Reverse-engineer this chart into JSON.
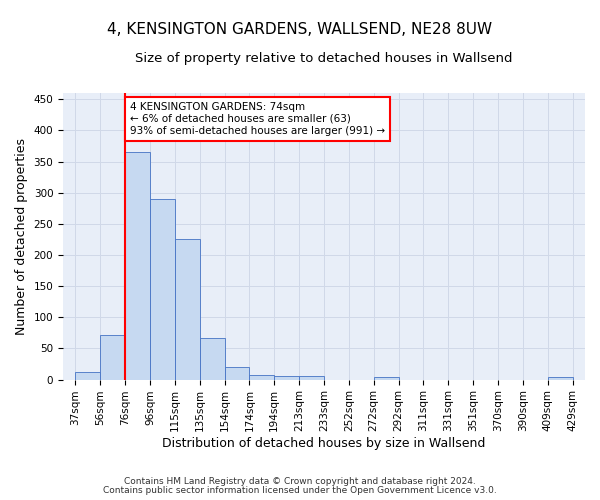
{
  "title": "4, KENSINGTON GARDENS, WALLSEND, NE28 8UW",
  "subtitle": "Size of property relative to detached houses in Wallsend",
  "xlabel": "Distribution of detached houses by size in Wallsend",
  "ylabel": "Number of detached properties",
  "bar_values": [
    12,
    72,
    365,
    290,
    225,
    67,
    20,
    7,
    6,
    5,
    0,
    0,
    4,
    0,
    0,
    0,
    0,
    0,
    0,
    4
  ],
  "categories": [
    "37sqm",
    "56sqm",
    "76sqm",
    "96sqm",
    "115sqm",
    "135sqm",
    "154sqm",
    "174sqm",
    "194sqm",
    "213sqm",
    "233sqm",
    "252sqm",
    "272sqm",
    "292sqm",
    "311sqm",
    "331sqm",
    "351sqm",
    "370sqm",
    "390sqm",
    "409sqm",
    "429sqm"
  ],
  "bar_color": "#c6d9f1",
  "bar_edge_color": "#4472c4",
  "grid_color": "#d0d8e8",
  "background_color": "#e8eef8",
  "vline_x_index": 2,
  "vline_color": "red",
  "annotation_text": "4 KENSINGTON GARDENS: 74sqm\n← 6% of detached houses are smaller (63)\n93% of semi-detached houses are larger (991) →",
  "annotation_box_color": "white",
  "annotation_box_edge": "red",
  "ylim": [
    0,
    460
  ],
  "yticks": [
    0,
    50,
    100,
    150,
    200,
    250,
    300,
    350,
    400,
    450
  ],
  "footer1": "Contains HM Land Registry data © Crown copyright and database right 2024.",
  "footer2": "Contains public sector information licensed under the Open Government Licence v3.0.",
  "title_fontsize": 11,
  "subtitle_fontsize": 9.5,
  "tick_fontsize": 7.5,
  "ylabel_fontsize": 9,
  "xlabel_fontsize": 9,
  "footer_fontsize": 6.5
}
